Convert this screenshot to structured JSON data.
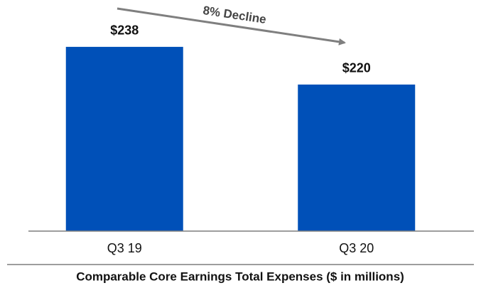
{
  "chart_data": {
    "type": "bar",
    "title": "Comparable Core Earnings Total Expenses ($ in millions)",
    "annotation": "8% Decline",
    "categories": [
      "Q3 19",
      "Q3 20"
    ],
    "values": [
      238,
      220
    ],
    "value_labels": [
      "$238",
      "$220"
    ],
    "color": "#0050b8",
    "ylim": [
      150,
      240
    ]
  }
}
